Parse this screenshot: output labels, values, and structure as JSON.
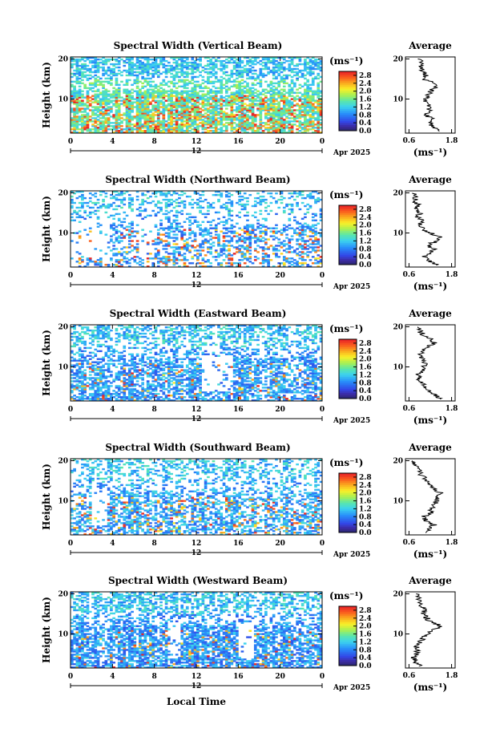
{
  "figure": {
    "xlabel": "Local Time",
    "date_label": "Apr 2025",
    "day_label": "12",
    "colorbar_unit": "(ms⁻¹)",
    "colorbar_ticks": [
      "2.8",
      "2.4",
      "2.0",
      "1.6",
      "1.2",
      "0.8",
      "0.4",
      "0.0"
    ],
    "colorbar_range": [
      0,
      3.0
    ],
    "avg_title": "Average",
    "avg_xlabel": "(ms⁻¹)",
    "avg_xticks": [
      0.6,
      1.8
    ],
    "avg_xlim": [
      0.5,
      1.9
    ],
    "time_ticks": [
      0,
      4,
      8,
      12,
      16,
      20,
      0
    ],
    "time_range_h": [
      0,
      24
    ],
    "height_ticks": [
      10,
      20
    ],
    "height_range_km": [
      1.5,
      20.5
    ],
    "ylabel": "Height (km)"
  },
  "chart_data": [
    {
      "type": "heatmap",
      "title": "Spectral Width (Vertical Beam)",
      "ylabel": "Height (km)",
      "xlabel": "",
      "x_range_h": [
        0,
        24
      ],
      "y_range_km": [
        1.5,
        20.5
      ],
      "z_range": [
        0,
        3.0
      ],
      "profile_heights_km": [
        2,
        3,
        4,
        5,
        6,
        7,
        8,
        9,
        10,
        11,
        12,
        13,
        14,
        15,
        16,
        17,
        18,
        19,
        20
      ],
      "average_profile": [
        1.5,
        1.3,
        1.2,
        1.25,
        1.1,
        1.15,
        1.2,
        1.1,
        1.05,
        1.15,
        1.2,
        1.35,
        1.3,
        1.0,
        1.1,
        0.95,
        0.9,
        1.0,
        0.85
      ]
    },
    {
      "type": "heatmap",
      "title": "Spectral Width (Northward Beam)",
      "ylabel": "Height (km)",
      "xlabel": "",
      "x_range_h": [
        0,
        24
      ],
      "y_range_km": [
        1.5,
        20.5
      ],
      "z_range": [
        0,
        3.0
      ],
      "profile_heights_km": [
        2,
        3,
        4,
        5,
        6,
        7,
        8,
        9,
        10,
        11,
        12,
        13,
        14,
        15,
        16,
        17,
        18,
        19,
        20
      ],
      "average_profile": [
        1.4,
        1.2,
        1.0,
        1.2,
        1.3,
        1.1,
        1.4,
        1.5,
        1.2,
        1.0,
        0.9,
        1.0,
        0.85,
        0.9,
        0.8,
        0.85,
        0.75,
        0.8,
        0.7
      ]
    },
    {
      "type": "heatmap",
      "title": "Spectral Width (Eastward Beam)",
      "ylabel": "Height (km)",
      "xlabel": "",
      "x_range_h": [
        0,
        24
      ],
      "y_range_km": [
        1.5,
        20.5
      ],
      "z_range": [
        0,
        3.0
      ],
      "profile_heights_km": [
        2,
        3,
        4,
        5,
        6,
        7,
        8,
        9,
        10,
        11,
        12,
        13,
        14,
        15,
        16,
        17,
        18,
        19,
        20
      ],
      "average_profile": [
        1.5,
        1.3,
        1.2,
        1.05,
        0.95,
        0.9,
        0.85,
        0.95,
        1.0,
        1.05,
        1.0,
        0.9,
        1.0,
        1.1,
        1.3,
        1.2,
        1.0,
        0.9,
        0.85
      ]
    },
    {
      "type": "heatmap",
      "title": "Spectral Width (Southward Beam)",
      "ylabel": "Height (km)",
      "xlabel": "",
      "x_range_h": [
        0,
        24
      ],
      "y_range_km": [
        1.5,
        20.5
      ],
      "z_range": [
        0,
        3.0
      ],
      "profile_heights_km": [
        2,
        3,
        4,
        5,
        6,
        7,
        8,
        9,
        10,
        11,
        12,
        13,
        14,
        15,
        16,
        17,
        18,
        19,
        20
      ],
      "average_profile": [
        1.1,
        1.2,
        1.3,
        1.1,
        1.0,
        1.2,
        1.25,
        1.3,
        1.4,
        1.35,
        1.5,
        1.3,
        1.2,
        1.1,
        1.0,
        0.9,
        0.85,
        0.8,
        0.7
      ]
    },
    {
      "type": "heatmap",
      "title": "Spectral Width (Westward Beam)",
      "ylabel": "Height (km)",
      "xlabel": "",
      "x_range_h": [
        0,
        24
      ],
      "y_range_km": [
        1.5,
        20.5
      ],
      "z_range": [
        0,
        3.0
      ],
      "profile_heights_km": [
        2,
        3,
        4,
        5,
        6,
        7,
        8,
        9,
        10,
        11,
        12,
        13,
        14,
        15,
        16,
        17,
        18,
        19,
        20
      ],
      "average_profile": [
        0.9,
        0.8,
        0.75,
        0.8,
        0.85,
        0.8,
        0.9,
        1.0,
        1.1,
        1.3,
        1.5,
        1.2,
        1.1,
        1.0,
        1.05,
        0.95,
        0.9,
        0.85,
        0.8
      ]
    }
  ]
}
